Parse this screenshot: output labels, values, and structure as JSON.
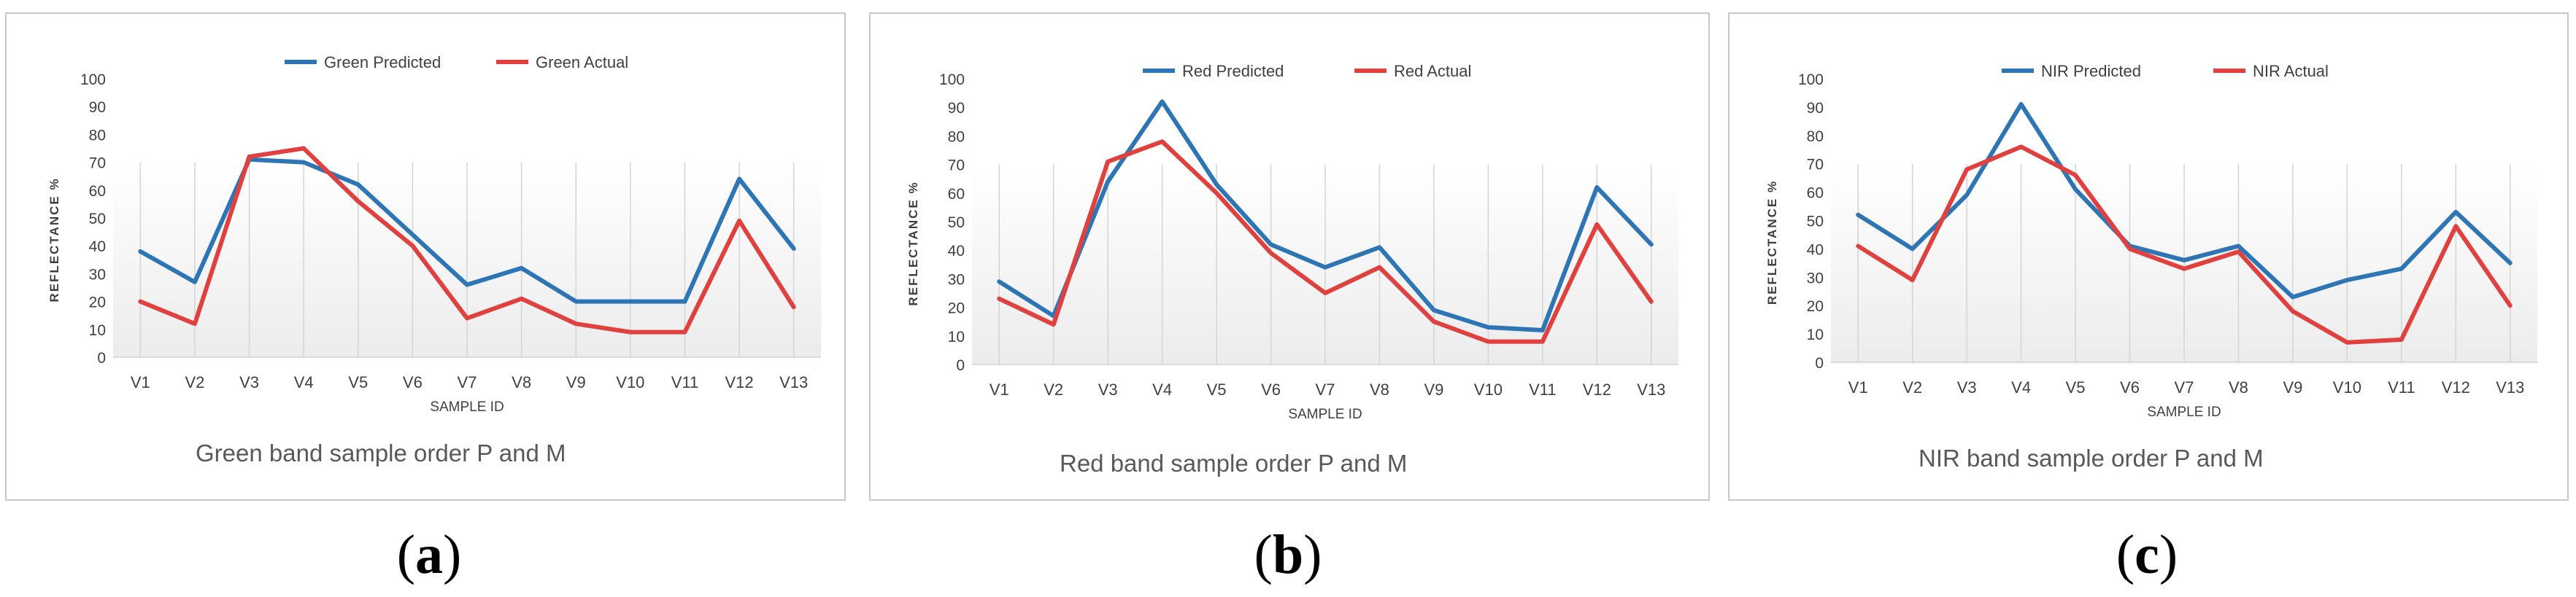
{
  "panels": [
    {
      "letter": "a"
    },
    {
      "letter": "b"
    },
    {
      "letter": "c"
    }
  ],
  "chart_data": [
    {
      "type": "line",
      "title": "Green band sample order P and M",
      "xlabel": "SAMPLE ID",
      "ylabel": "REFLECTANCE %",
      "ylim": [
        0,
        100
      ],
      "yticks": [
        0,
        10,
        20,
        30,
        40,
        50,
        60,
        70,
        80,
        90,
        100
      ],
      "grid": "vertical lines",
      "legend": "top-center",
      "categories": [
        "V1",
        "V2",
        "V3",
        "V4",
        "V5",
        "V6",
        "V7",
        "V8",
        "V9",
        "V10",
        "V11",
        "V12",
        "V13"
      ],
      "series": [
        {
          "name": "Green Predicted",
          "color": "#2e75b6",
          "values": [
            38,
            27,
            71,
            70,
            62,
            44,
            26,
            32,
            20,
            20,
            20,
            64,
            39
          ]
        },
        {
          "name": "Green Actual",
          "color": "#e0413f",
          "values": [
            20,
            12,
            72,
            75,
            56,
            40,
            14,
            21,
            12,
            9,
            9,
            49,
            18
          ]
        }
      ]
    },
    {
      "type": "line",
      "title": "Red band sample order P and M",
      "xlabel": "SAMPLE ID",
      "ylabel": "REFLECTANCE %",
      "ylim": [
        0,
        100
      ],
      "yticks": [
        0,
        10,
        20,
        30,
        40,
        50,
        60,
        70,
        80,
        90,
        100
      ],
      "grid": "vertical lines",
      "legend": "top-center",
      "categories": [
        "V1",
        "V2",
        "V3",
        "V4",
        "V5",
        "V6",
        "V7",
        "V8",
        "V9",
        "V10",
        "V11",
        "V12",
        "V13"
      ],
      "series": [
        {
          "name": "Red Predicted",
          "color": "#2e75b6",
          "values": [
            29,
            17,
            64,
            92,
            63,
            42,
            34,
            41,
            19,
            13,
            12,
            62,
            42
          ]
        },
        {
          "name": "Red Actual",
          "color": "#e0413f",
          "values": [
            23,
            14,
            71,
            78,
            60,
            39,
            25,
            34,
            15,
            8,
            8,
            49,
            22
          ]
        }
      ]
    },
    {
      "type": "line",
      "title": "NIR band sample order P and M",
      "xlabel": "SAMPLE ID",
      "ylabel": "REFLECTANCE %",
      "ylim": [
        0,
        100
      ],
      "yticks": [
        0,
        10,
        20,
        30,
        40,
        50,
        60,
        70,
        80,
        90,
        100
      ],
      "grid": "vertical lines",
      "legend": "top-center",
      "categories": [
        "V1",
        "V2",
        "V3",
        "V4",
        "V5",
        "V6",
        "V7",
        "V8",
        "V9",
        "V10",
        "V11",
        "V12",
        "V13"
      ],
      "series": [
        {
          "name": "NIR Predicted",
          "color": "#2e75b6",
          "values": [
            52,
            40,
            59,
            91,
            61,
            41,
            36,
            41,
            23,
            29,
            33,
            53,
            35
          ]
        },
        {
          "name": "NIR Actual",
          "color": "#e0413f",
          "values": [
            41,
            29,
            68,
            76,
            66,
            40,
            33,
            39,
            18,
            7,
            8,
            48,
            20
          ]
        }
      ]
    }
  ]
}
